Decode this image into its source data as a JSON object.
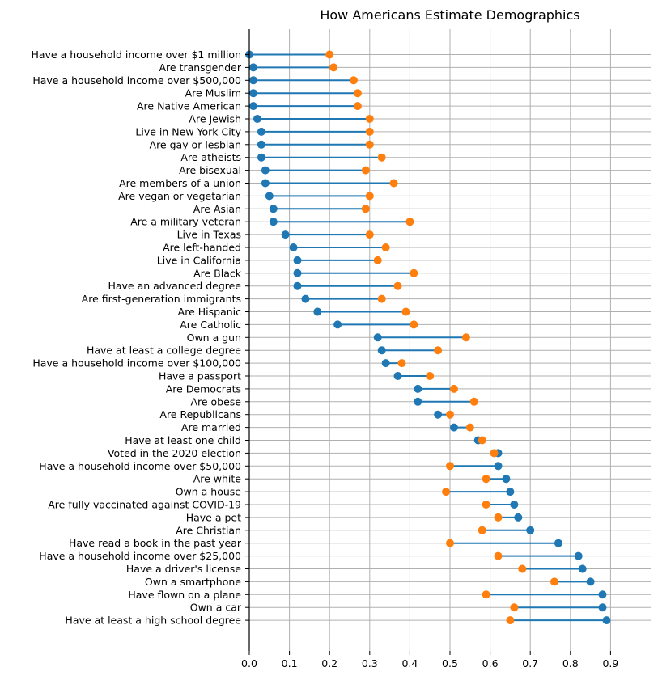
{
  "chart_data": {
    "type": "dumbbell",
    "title": "How Americans Estimate Demographics",
    "xlabel": "",
    "ylabel": "",
    "xlim": [
      0,
      1.0
    ],
    "xticks": [
      "0.0",
      "0.1",
      "0.2",
      "0.3",
      "0.4",
      "0.5",
      "0.6",
      "0.7",
      "0.8",
      "0.9"
    ],
    "grid": true,
    "colors": {
      "actual": "#1f77b4",
      "estimate": "#ff7f0e",
      "grid": "#b0b0b0"
    },
    "categories": [
      "Have a household income over $1 million",
      "Are transgender",
      "Have a household income over $500,000",
      "Are Muslim",
      "Are Native American",
      "Are Jewish",
      "Live in New York City",
      "Are gay or lesbian",
      "Are atheists",
      "Are bisexual",
      "Are members of a union",
      "Are vegan or vegetarian",
      "Are Asian",
      "Are a military veteran",
      "Live in Texas",
      "Are left-handed",
      "Live in California",
      "Are Black",
      "Have an advanced degree",
      "Are first-generation immigrants",
      "Are Hispanic",
      "Are Catholic",
      "Own a gun",
      "Have at least a college degree",
      "Have a household income over $100,000",
      "Have a passport",
      "Are Democrats",
      "Are obese",
      "Are Republicans",
      "Are married",
      "Have at least one child",
      "Voted in the 2020 election",
      "Have a household income over $50,000",
      "Are white",
      "Own a house",
      "Are fully vaccinated against COVID-19",
      "Have a pet",
      "Are Christian",
      "Have read a book in the past year",
      "Have a household income over $25,000",
      "Have a driver's license",
      "Own a smartphone",
      "Have flown on a plane",
      "Own a car",
      "Have at least a high school degree"
    ],
    "series": [
      {
        "values": [
          0.0,
          0.01,
          0.01,
          0.01,
          0.01,
          0.02,
          0.03,
          0.03,
          0.03,
          0.04,
          0.04,
          0.05,
          0.06,
          0.06,
          0.09,
          0.11,
          0.12,
          0.12,
          0.12,
          0.14,
          0.17,
          0.22,
          0.32,
          0.33,
          0.34,
          0.37,
          0.42,
          0.42,
          0.47,
          0.51,
          0.57,
          0.62,
          0.62,
          0.64,
          0.65,
          0.66,
          0.67,
          0.7,
          0.77,
          0.82,
          0.83,
          0.85,
          0.88,
          0.88,
          0.89
        ]
      },
      {
        "values": [
          0.2,
          0.21,
          0.26,
          0.27,
          0.27,
          0.3,
          0.3,
          0.3,
          0.33,
          0.29,
          0.36,
          0.3,
          0.29,
          0.4,
          0.3,
          0.34,
          0.32,
          0.41,
          0.37,
          0.33,
          0.39,
          0.41,
          0.54,
          0.47,
          0.38,
          0.45,
          0.51,
          0.56,
          0.5,
          0.55,
          0.58,
          0.61,
          0.5,
          0.59,
          0.49,
          0.59,
          0.62,
          0.58,
          0.5,
          0.62,
          0.68,
          0.76,
          0.59,
          0.66,
          0.65
        ]
      }
    ]
  }
}
